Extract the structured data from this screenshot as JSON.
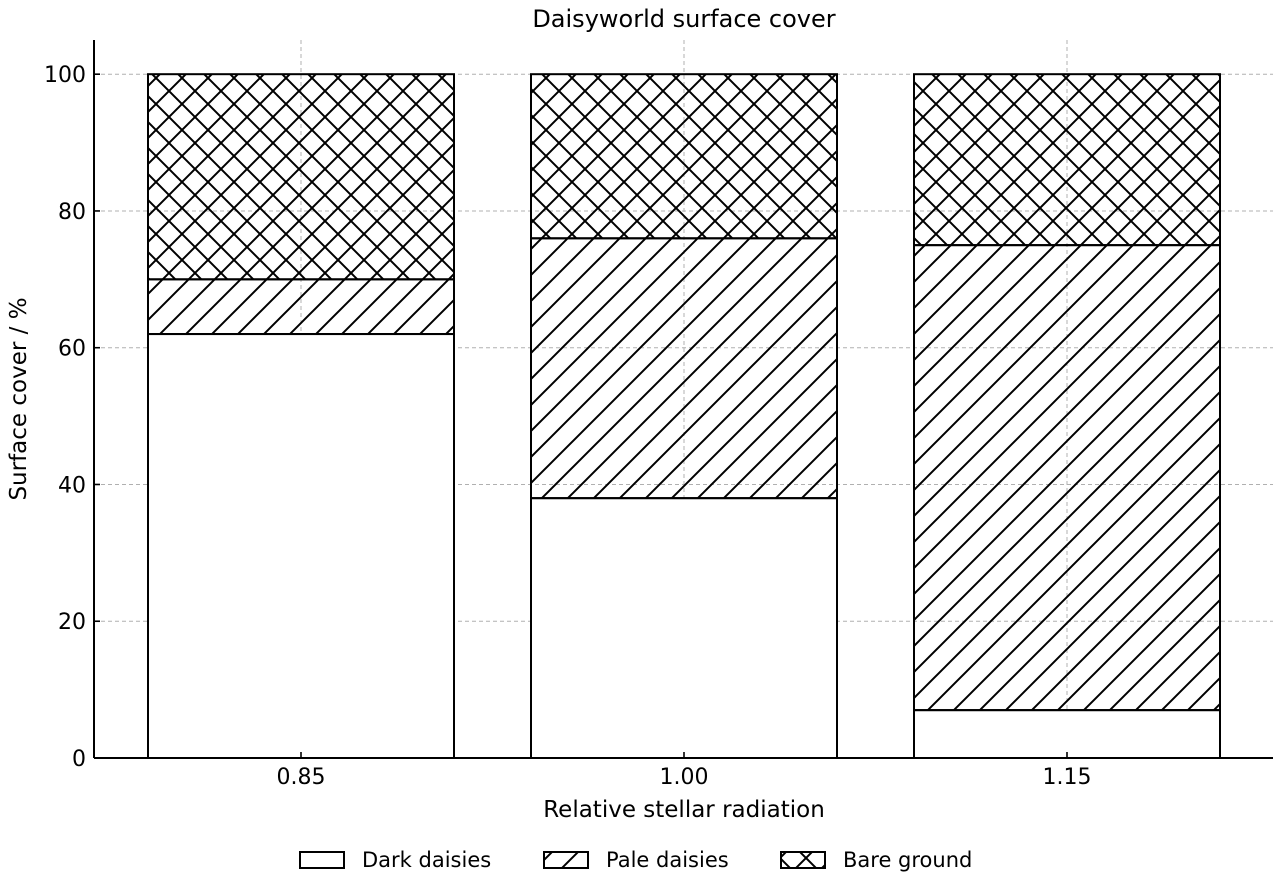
{
  "chart_data": {
    "type": "bar",
    "stacked": true,
    "title": "Daisyworld surface cover",
    "xlabel": "Relative stellar radiation",
    "ylabel": "Surface cover / %",
    "categories": [
      "0.85",
      "1.00",
      "1.15"
    ],
    "series": [
      {
        "name": "Dark daisies",
        "values": [
          62,
          38,
          7
        ],
        "fill": "#ffffff",
        "hatch": "none"
      },
      {
        "name": "Pale daisies",
        "values": [
          8,
          38,
          68
        ],
        "fill": "#ffffff",
        "hatch": "diagonal"
      },
      {
        "name": "Bare ground",
        "values": [
          30,
          24,
          25
        ],
        "fill": "#ffffff",
        "hatch": "cross"
      }
    ],
    "ylim": [
      0,
      105
    ],
    "yticks": [
      0,
      20,
      40,
      60,
      80,
      100
    ],
    "grid": true,
    "legend_position": "bottom-center"
  }
}
